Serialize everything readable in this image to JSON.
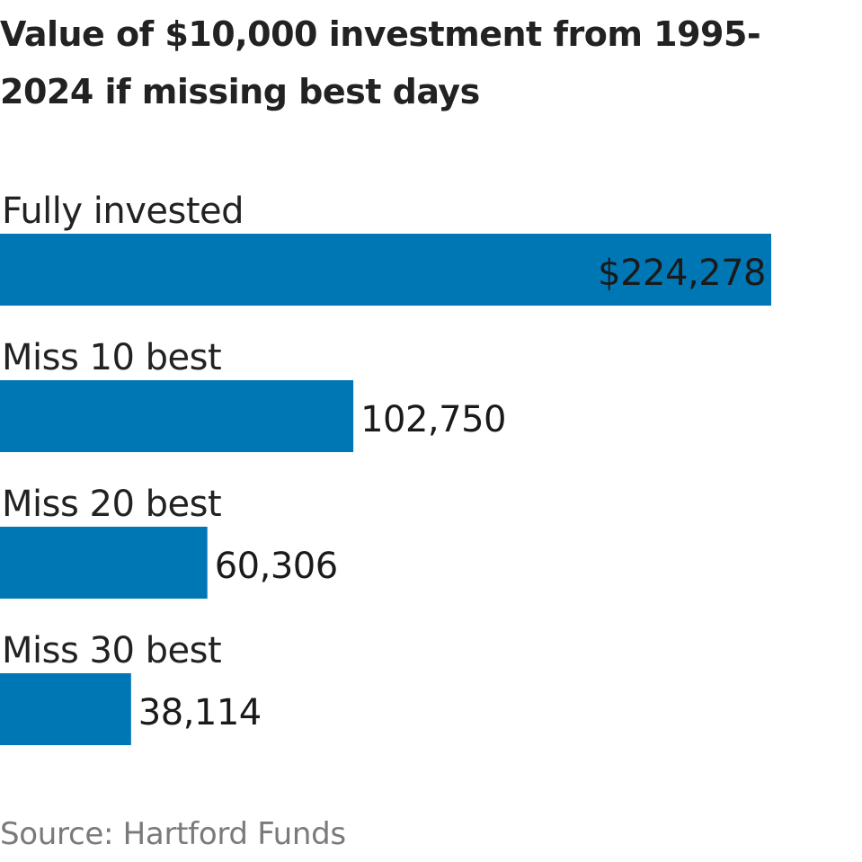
{
  "chart_data": {
    "type": "bar",
    "orientation": "horizontal",
    "title": "Value of $10,000 investment from 1995-2024 if missing best days",
    "categories": [
      "Fully invested",
      "Miss 10 best",
      "Miss 20 best",
      "Miss 30 best"
    ],
    "values": [
      224278,
      102750,
      60306,
      38114
    ],
    "value_labels": [
      "$224,278",
      "102,750",
      "60,306",
      "38,114"
    ],
    "xlim": [
      0,
      224278
    ],
    "grid": false,
    "legend": "none",
    "bar_color": "#0077b5",
    "source": "Source: Hartford Funds"
  }
}
